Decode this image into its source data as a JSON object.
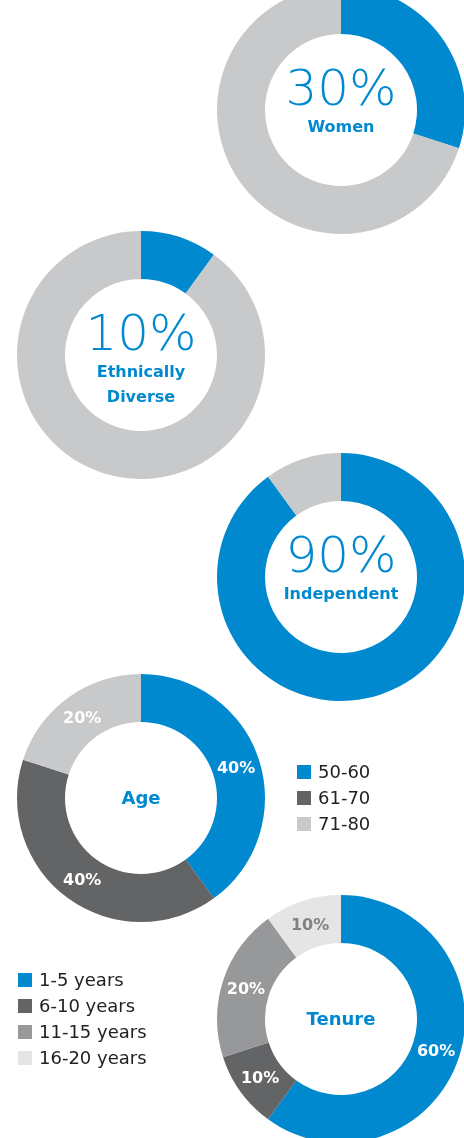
{
  "chart_data": [
    {
      "type": "donut",
      "title": "Women",
      "categories": [
        null,
        null
      ],
      "values": [
        30,
        70
      ],
      "colors": [
        "#0089cf",
        "#c8c9cb"
      ],
      "value_labels": [
        "30%",
        null
      ],
      "legend": false
    },
    {
      "type": "donut",
      "title": "Ethnically Diverse",
      "categories": [
        null,
        null
      ],
      "values": [
        10,
        90
      ],
      "colors": [
        "#0089cf",
        "#c8c9cb"
      ],
      "value_labels": [
        "10%",
        null
      ],
      "legend": false
    },
    {
      "type": "donut",
      "title": "Independent",
      "categories": [
        null,
        null
      ],
      "values": [
        90,
        10
      ],
      "colors": [
        "#0089cf",
        "#c8c9cb"
      ],
      "value_labels": [
        "90%",
        null
      ],
      "legend": false
    },
    {
      "type": "donut",
      "title": "Age",
      "categories": [
        "50-60",
        "61-70",
        "71-80"
      ],
      "values": [
        40,
        40,
        20
      ],
      "colors": [
        "#0089cf",
        "#636466",
        "#c8c9cb"
      ],
      "value_labels": [
        "40%",
        "40%",
        "20%"
      ],
      "legend": "right"
    },
    {
      "type": "donut",
      "title": "Tenure",
      "categories": [
        "1-5 years",
        "6-10 years",
        "11-15 years",
        "16-20 years"
      ],
      "values": [
        60,
        10,
        20,
        10
      ],
      "colors": [
        "#0089cf",
        "#636466",
        "#97989a",
        "#e5e5e6"
      ],
      "value_labels": [
        "60%",
        "10%",
        "20%",
        "10%"
      ],
      "legend": "left"
    }
  ]
}
